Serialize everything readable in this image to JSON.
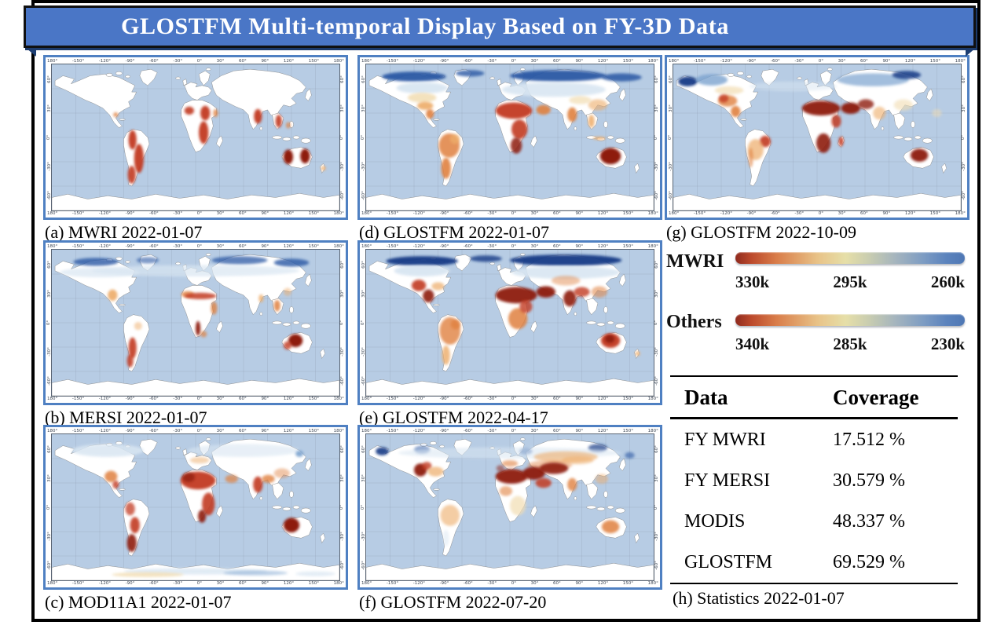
{
  "title": "GLOSTFM Multi-temporal Display Based on FY-3D Data",
  "panels": [
    {
      "id": "a",
      "caption": "(a) MWRI 2022-01-07",
      "overlay": "mwri"
    },
    {
      "id": "b",
      "caption": "(b) MERSI 2022-01-07",
      "overlay": "mersi"
    },
    {
      "id": "c",
      "caption": "(c) MOD11A1 2022-01-07",
      "overlay": "mod11a1"
    },
    {
      "id": "d",
      "caption": "(d) GLOSTFM 2022-01-07",
      "overlay": "glostfm_0107"
    },
    {
      "id": "e",
      "caption": "(e) GLOSTFM 2022-04-17",
      "overlay": "glostfm_0417"
    },
    {
      "id": "f",
      "caption": "(f) GLOSTFM 2022-07-20",
      "overlay": "glostfm_0720"
    },
    {
      "id": "g",
      "caption": "(g) GLOSTFM 2022-10-09",
      "overlay": "glostfm_1009"
    }
  ],
  "map_axes": {
    "lon_ticks": [
      "180°",
      "-150°",
      "-120°",
      "-90°",
      "-60°",
      "-30°",
      "0°",
      "30°",
      "60°",
      "90°",
      "120°",
      "150°",
      "180°"
    ],
    "lat_ticks": [
      "60°",
      "30°",
      "0°",
      "-30°",
      "-60°"
    ]
  },
  "legend": {
    "bars": [
      {
        "label": "MWRI",
        "ticks": [
          "330k",
          "295k",
          "260k"
        ]
      },
      {
        "label": "Others",
        "ticks": [
          "340k",
          "285k",
          "230k"
        ]
      }
    ],
    "gradient_hex": [
      "#8f2a1e",
      "#d97d4a",
      "#e6dfa8",
      "#7d9cc3",
      "#4e77b4"
    ]
  },
  "stats_table": {
    "headers": [
      "Data",
      "Coverage"
    ],
    "rows": [
      [
        "FY MWRI",
        "17.512 %"
      ],
      [
        "FY MERSI",
        "30.579 %"
      ],
      [
        "MODIS",
        "48.337 %"
      ],
      [
        "GLOSTFM",
        "69.529 %"
      ]
    ],
    "caption": "(h) Statistics 2022-01-07"
  },
  "chart_data": {
    "type": "table",
    "title": "GLOSTFM Multi-temporal Display Based on FY-3D Data",
    "columns": [
      "Data",
      "Coverage"
    ],
    "rows": [
      [
        "FY MWRI",
        17.512
      ],
      [
        "FY MERSI",
        30.579
      ],
      [
        "MODIS",
        48.337
      ],
      [
        "GLOSTFM",
        69.529
      ]
    ],
    "units": "%",
    "colorbars": [
      {
        "name": "MWRI",
        "tick_labels_kelvin": [
          330,
          295,
          260
        ]
      },
      {
        "name": "Others",
        "tick_labels_kelvin": [
          340,
          285,
          230
        ]
      }
    ],
    "map_panels": [
      "(a) MWRI 2022-01-07",
      "(b) MERSI 2022-01-07",
      "(c) MOD11A1 2022-01-07",
      "(d) GLOSTFM 2022-01-07",
      "(e) GLOSTFM 2022-04-17",
      "(f) GLOSTFM 2022-07-20",
      "(g) GLOSTFM 2022-10-09"
    ],
    "statistics_caption": "(h) Statistics 2022-01-07"
  }
}
